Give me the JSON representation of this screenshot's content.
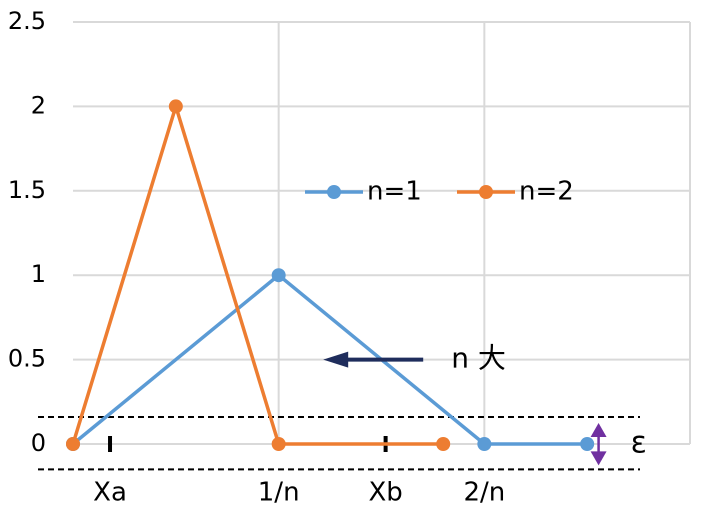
{
  "chart_data": {
    "type": "line",
    "series": [
      {
        "name": "n=1",
        "color": "#5b9bd5",
        "x": [
          0,
          1,
          2,
          2.5
        ],
        "values": [
          0,
          1,
          0,
          0
        ]
      },
      {
        "name": "n=2",
        "color": "#ed7d31",
        "x": [
          0,
          0.5,
          1,
          1.8
        ],
        "values": [
          0,
          2,
          0,
          0
        ]
      }
    ],
    "xlim": [
      0,
      3
    ],
    "xticks": [
      {
        "value": 0.18,
        "label": "Xa"
      },
      {
        "value": 1,
        "label": "1/n"
      },
      {
        "value": 1.52,
        "label": "Xb"
      },
      {
        "value": 2,
        "label": "2/n"
      }
    ],
    "ylim": [
      0,
      2.5
    ],
    "yticks": [
      0,
      0.5,
      1,
      1.5,
      2,
      2.5
    ],
    "grid": true,
    "legend": "top",
    "hlines": [
      0.16,
      -0.15
    ],
    "annotations": [
      {
        "text": "n 大",
        "x": 1.8,
        "y": 0.5
      },
      {
        "text": "ε",
        "x": 2.75,
        "y": 0
      }
    ]
  }
}
